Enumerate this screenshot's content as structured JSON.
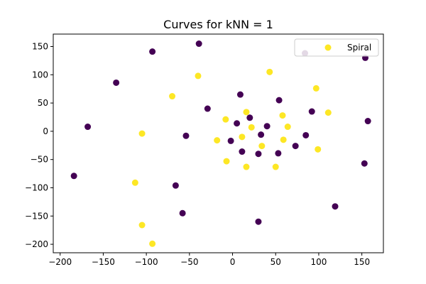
{
  "chart_data": {
    "type": "scatter",
    "title": "Curves for kNN = 1",
    "xlabel": "",
    "ylabel": "",
    "xlim": [
      -208,
      175
    ],
    "ylim": [
      -215,
      172
    ],
    "x_ticks": [
      -200,
      -150,
      -100,
      -50,
      0,
      50,
      100,
      150
    ],
    "y_ticks": [
      150,
      100,
      50,
      0,
      -50,
      -100,
      -150,
      -200
    ],
    "grid": false,
    "legend": {
      "position": "top-right",
      "entries": [
        "Spiral"
      ]
    },
    "colors": {
      "class_a": "#440154",
      "class_b": "#fde725"
    },
    "series": [
      {
        "name": "Spiral",
        "color": "#fde725",
        "points": [
          [
            -40,
            98
          ],
          [
            -70,
            62
          ],
          [
            -105,
            -4
          ],
          [
            -113,
            -91
          ],
          [
            -105,
            -166
          ],
          [
            -93,
            -199
          ],
          [
            43,
            105
          ],
          [
            97,
            76
          ],
          [
            111,
            33
          ],
          [
            99,
            -32
          ],
          [
            50,
            -63
          ],
          [
            16,
            -63
          ],
          [
            -7,
            -53
          ],
          [
            -18,
            -16
          ],
          [
            -8,
            21
          ],
          [
            16,
            34
          ],
          [
            22,
            7
          ],
          [
            11,
            -10
          ],
          [
            34,
            -26
          ],
          [
            59,
            -15
          ],
          [
            64,
            8
          ],
          [
            58,
            28
          ]
        ]
      },
      {
        "color": "#440154",
        "points": [
          [
            -39,
            155
          ],
          [
            -93,
            141
          ],
          [
            -135,
            86
          ],
          [
            -168,
            8
          ],
          [
            -184,
            -79
          ],
          [
            -66,
            -96
          ],
          [
            -58,
            -145
          ],
          [
            -54,
            -8
          ],
          [
            -29,
            40
          ],
          [
            9,
            65
          ],
          [
            20,
            24
          ],
          [
            5,
            14
          ],
          [
            -2,
            -17
          ],
          [
            11,
            -36
          ],
          [
            30,
            -40
          ],
          [
            33,
            -6
          ],
          [
            40,
            9
          ],
          [
            54,
            55
          ],
          [
            53,
            -39
          ],
          [
            73,
            -26
          ],
          [
            85,
            -7
          ],
          [
            92,
            35
          ],
          [
            84,
            138
          ],
          [
            154,
            130
          ],
          [
            157,
            18
          ],
          [
            153,
            -57
          ],
          [
            119,
            -133
          ],
          [
            30,
            -160
          ]
        ]
      }
    ]
  }
}
